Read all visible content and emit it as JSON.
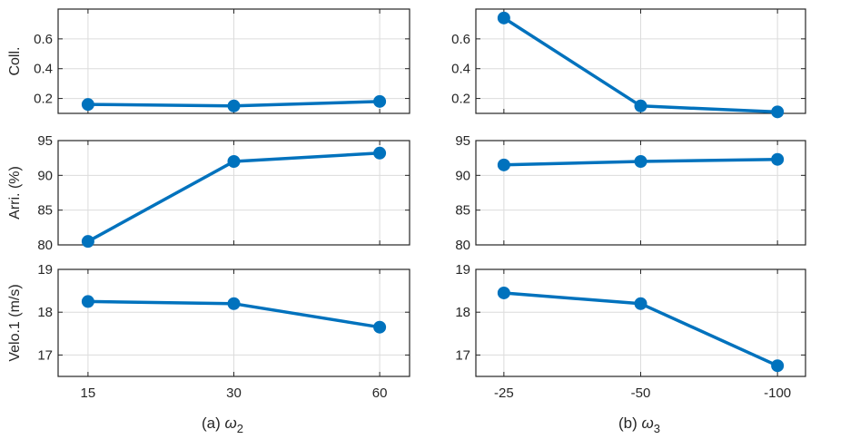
{
  "figure": {
    "accent_color": "#0072BD",
    "xlabels": {
      "a": {
        "prefix": "(a) ",
        "symbol": "ω",
        "sub": "2"
      },
      "b": {
        "prefix": "(b) ",
        "symbol": "ω",
        "sub": "3"
      }
    }
  },
  "chart_data": [
    {
      "type": "line",
      "panel": "a-row1",
      "categories": [
        "15",
        "30",
        "60"
      ],
      "values": [
        0.16,
        0.15,
        0.18
      ],
      "ylabel": "Coll.",
      "ylim": [
        0.1,
        0.8
      ],
      "yticks": [
        0.2,
        0.4,
        0.6
      ],
      "ytick_labels": [
        "0.2",
        "0.4",
        "0.6"
      ],
      "show_xtick_labels": false,
      "show_ylabel": true,
      "grid": true
    },
    {
      "type": "line",
      "panel": "b-row1",
      "categories": [
        "-25",
        "-50",
        "-100"
      ],
      "values": [
        0.74,
        0.15,
        0.11
      ],
      "ylabel": "",
      "ylim": [
        0.1,
        0.8
      ],
      "yticks": [
        0.2,
        0.4,
        0.6
      ],
      "ytick_labels": [
        "0.2",
        "0.4",
        "0.6"
      ],
      "show_xtick_labels": false,
      "show_ylabel": false,
      "grid": true
    },
    {
      "type": "line",
      "panel": "a-row2",
      "categories": [
        "15",
        "30",
        "60"
      ],
      "values": [
        80.5,
        92.0,
        93.2
      ],
      "ylabel": "Arri. (%)",
      "ylim": [
        80,
        95
      ],
      "yticks": [
        80,
        85,
        90,
        95
      ],
      "ytick_labels": [
        "80",
        "85",
        "90",
        "95"
      ],
      "show_xtick_labels": false,
      "show_ylabel": true,
      "grid": true
    },
    {
      "type": "line",
      "panel": "b-row2",
      "categories": [
        "-25",
        "-50",
        "-100"
      ],
      "values": [
        91.5,
        92.0,
        92.3
      ],
      "ylabel": "",
      "ylim": [
        80,
        95
      ],
      "yticks": [
        80,
        85,
        90,
        95
      ],
      "ytick_labels": [
        "80",
        "85",
        "90",
        "95"
      ],
      "show_xtick_labels": false,
      "show_ylabel": false,
      "grid": true
    },
    {
      "type": "line",
      "panel": "a-row3",
      "categories": [
        "15",
        "30",
        "60"
      ],
      "values": [
        18.25,
        18.2,
        17.65
      ],
      "ylabel": "Velo.1 (m/s)",
      "ylim": [
        16.5,
        19
      ],
      "yticks": [
        17,
        18,
        19
      ],
      "ytick_labels": [
        "17",
        "18",
        "19"
      ],
      "show_xtick_labels": true,
      "show_ylabel": true,
      "grid": true
    },
    {
      "type": "line",
      "panel": "b-row3",
      "categories": [
        "-25",
        "-50",
        "-100"
      ],
      "values": [
        18.45,
        18.2,
        16.75
      ],
      "ylabel": "",
      "ylim": [
        16.5,
        19
      ],
      "yticks": [
        17,
        18,
        19
      ],
      "ytick_labels": [
        "17",
        "18",
        "19"
      ],
      "show_xtick_labels": true,
      "show_ylabel": false,
      "grid": true
    }
  ]
}
